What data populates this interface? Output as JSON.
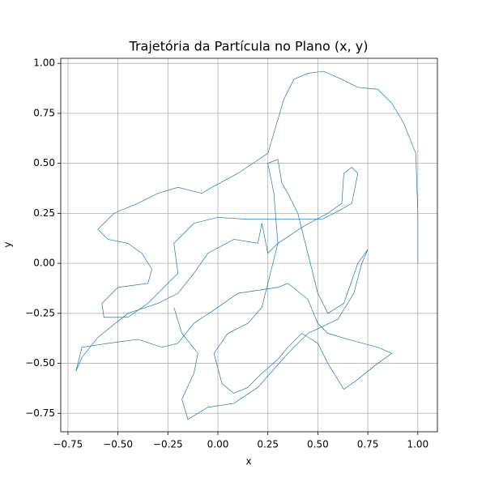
{
  "chart_data": {
    "type": "line",
    "title": "Trajetória da Partícula no Plano (x, y)",
    "x_label": "x",
    "y_label": "y",
    "x": [
      1.0,
      1.0,
      0.99,
      0.93,
      0.87,
      0.8,
      0.7,
      0.62,
      0.53,
      0.45,
      0.38,
      0.33,
      0.25,
      0.1,
      -0.03,
      -0.08,
      -0.2,
      -0.3,
      -0.4,
      -0.52,
      -0.6,
      -0.55,
      -0.45,
      -0.38,
      -0.33,
      -0.35,
      -0.5,
      -0.58,
      -0.57,
      -0.45,
      -0.35,
      -0.25,
      -0.2,
      -0.22,
      -0.12,
      0.0,
      0.15,
      0.35,
      0.52,
      0.6,
      0.67,
      0.7,
      0.67,
      0.63,
      0.62,
      0.55,
      0.42,
      0.3,
      0.25,
      0.22,
      0.2,
      0.08,
      -0.05,
      -0.12,
      -0.2,
      -0.3,
      -0.45,
      -0.6,
      -0.68,
      -0.71,
      -0.68,
      -0.55,
      -0.4,
      -0.28,
      -0.2,
      -0.12,
      0.0,
      0.1,
      0.3,
      0.35,
      0.45,
      0.5,
      0.55,
      0.65,
      0.8,
      0.87,
      0.8,
      0.7,
      0.63,
      0.55,
      0.5,
      0.42,
      0.35,
      0.3,
      0.22,
      0.15,
      0.08,
      0.02,
      -0.02,
      0.05,
      0.15,
      0.22,
      0.25,
      0.3,
      0.28,
      0.25,
      0.3,
      0.32,
      0.35,
      0.4,
      0.45,
      0.5,
      0.55,
      0.63,
      0.7,
      0.75,
      0.72,
      0.68,
      0.6,
      0.45,
      0.35,
      0.2,
      0.08,
      -0.05,
      -0.15,
      -0.18,
      -0.12,
      -0.1,
      -0.18,
      -0.22
    ],
    "series": [
      {
        "color": "#1f77b4",
        "values": [
          0.0,
          0.25,
          0.55,
          0.7,
          0.8,
          0.87,
          0.88,
          0.92,
          0.96,
          0.95,
          0.92,
          0.82,
          0.55,
          0.45,
          0.38,
          0.35,
          0.38,
          0.35,
          0.3,
          0.25,
          0.17,
          0.12,
          0.1,
          0.05,
          -0.03,
          -0.1,
          -0.12,
          -0.2,
          -0.27,
          -0.27,
          -0.2,
          -0.1,
          -0.05,
          0.1,
          0.2,
          0.23,
          0.22,
          0.22,
          0.22,
          0.26,
          0.3,
          0.45,
          0.48,
          0.45,
          0.3,
          0.25,
          0.18,
          0.1,
          0.05,
          0.2,
          0.1,
          0.12,
          0.05,
          -0.05,
          -0.15,
          -0.2,
          -0.25,
          -0.37,
          -0.47,
          -0.54,
          -0.42,
          -0.4,
          -0.38,
          -0.42,
          -0.4,
          -0.3,
          -0.22,
          -0.15,
          -0.12,
          -0.1,
          -0.18,
          -0.3,
          -0.35,
          -0.38,
          -0.42,
          -0.45,
          -0.5,
          -0.58,
          -0.63,
          -0.5,
          -0.4,
          -0.35,
          -0.42,
          -0.48,
          -0.55,
          -0.62,
          -0.65,
          -0.6,
          -0.45,
          -0.35,
          -0.3,
          -0.22,
          -0.1,
          0.1,
          0.35,
          0.5,
          0.52,
          0.4,
          0.35,
          0.25,
          0.05,
          -0.15,
          -0.25,
          -0.2,
          0.0,
          0.07,
          0.0,
          -0.15,
          -0.28,
          -0.35,
          -0.45,
          -0.62,
          -0.7,
          -0.72,
          -0.78,
          -0.68,
          -0.55,
          -0.45,
          -0.35,
          -0.22
        ]
      }
    ],
    "xlim": [
      -0.786,
      1.098
    ],
    "ylim": [
      -0.842,
      1.025
    ],
    "xticks": [
      {
        "value": -0.75,
        "label": "−0.75"
      },
      {
        "value": -0.5,
        "label": "−0.50"
      },
      {
        "value": -0.25,
        "label": "−0.25"
      },
      {
        "value": 0,
        "label": "0.00"
      },
      {
        "value": 0.25,
        "label": "0.25"
      },
      {
        "value": 0.5,
        "label": "0.50"
      },
      {
        "value": 0.75,
        "label": "0.75"
      },
      {
        "value": 1,
        "label": "1.00"
      }
    ],
    "yticks": [
      {
        "value": -0.75,
        "label": "−0.75"
      },
      {
        "value": -0.5,
        "label": "−0.50"
      },
      {
        "value": -0.25,
        "label": "−0.25"
      },
      {
        "value": 0,
        "label": "0.00"
      },
      {
        "value": 0.25,
        "label": "0.25"
      },
      {
        "value": 0.5,
        "label": "0.50"
      },
      {
        "value": 0.75,
        "label": "0.75"
      },
      {
        "value": 1,
        "label": "1.00"
      }
    ],
    "grid": true
  }
}
